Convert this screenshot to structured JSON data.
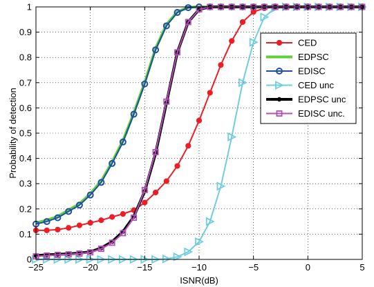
{
  "chart_data": {
    "type": "line",
    "xlabel": "ISNR(dB)",
    "ylabel": "Probability of detection",
    "xlim": [
      -25,
      5
    ],
    "ylim": [
      0,
      1
    ],
    "xticks": [
      -25,
      -20,
      -15,
      -10,
      -5,
      0,
      5
    ],
    "yticks": [
      0,
      0.1,
      0.2,
      0.3,
      0.4,
      0.5,
      0.6,
      0.7,
      0.8,
      0.9,
      1
    ],
    "xtick_labels": [
      "−25",
      "−20",
      "−15",
      "−10",
      "−5",
      "0",
      "5"
    ],
    "ytick_labels": [
      "0",
      "0.1",
      "0.2",
      "0.3",
      "0.4",
      "0.5",
      "0.6",
      "0.7",
      "0.8",
      "0.9",
      "1"
    ],
    "grid": true,
    "legend_position": "right",
    "x": [
      -25,
      -24,
      -23,
      -22,
      -21,
      -20,
      -19,
      -18,
      -17,
      -16,
      -15,
      -14,
      -13,
      -12,
      -11,
      -10,
      -9,
      -8,
      -7,
      -6,
      -5,
      -4,
      -3,
      -2,
      -1,
      0,
      1,
      2,
      3,
      4,
      5
    ],
    "series": [
      {
        "name": "CED",
        "color": "#ee1c25",
        "marker": "circle",
        "values": [
          0.115,
          0.115,
          0.118,
          0.125,
          0.135,
          0.145,
          0.155,
          0.168,
          0.18,
          0.195,
          0.225,
          0.265,
          0.31,
          0.37,
          0.45,
          0.55,
          0.66,
          0.77,
          0.865,
          0.94,
          0.98,
          0.995,
          1,
          1,
          1,
          1,
          1,
          1,
          1,
          1,
          1
        ]
      },
      {
        "name": "EDPSC",
        "color": "#5fcf3c",
        "marker": "none",
        "values": [
          0.145,
          0.155,
          0.17,
          0.195,
          0.22,
          0.26,
          0.31,
          0.385,
          0.47,
          0.58,
          0.7,
          0.835,
          0.93,
          0.98,
          0.998,
          1,
          1,
          1,
          1,
          1,
          1,
          1,
          1,
          1,
          1,
          1,
          1,
          1,
          1,
          1,
          1
        ]
      },
      {
        "name": "EDISC",
        "color": "#1f4fa3",
        "marker": "circle-open",
        "values": [
          0.14,
          0.15,
          0.165,
          0.19,
          0.215,
          0.255,
          0.305,
          0.38,
          0.465,
          0.575,
          0.695,
          0.83,
          0.925,
          0.978,
          0.997,
          1,
          1,
          1,
          1,
          1,
          1,
          1,
          1,
          1,
          1,
          1,
          1,
          1,
          1,
          1,
          1
        ]
      },
      {
        "name": "CED unc",
        "color": "#6fcde0",
        "marker": "triangle-right",
        "values": [
          0,
          0,
          0,
          0,
          0,
          0,
          0,
          0,
          0,
          0,
          0,
          0,
          0.002,
          0.01,
          0.03,
          0.07,
          0.15,
          0.29,
          0.485,
          0.7,
          0.86,
          0.96,
          0.995,
          1,
          1,
          1,
          1,
          1,
          1,
          1,
          1
        ]
      },
      {
        "name": "EDPSC unc",
        "color": "#000000",
        "marker": "dot",
        "values": [
          0.015,
          0.018,
          0.02,
          0.022,
          0.025,
          0.03,
          0.045,
          0.07,
          0.11,
          0.17,
          0.27,
          0.42,
          0.62,
          0.82,
          0.94,
          0.99,
          1,
          1,
          1,
          1,
          1,
          1,
          1,
          1,
          1,
          1,
          1,
          1,
          1,
          1,
          1
        ]
      },
      {
        "name": "EDISC unc.",
        "color": "#b34fb5",
        "marker": "square",
        "values": [
          0.012,
          0.015,
          0.018,
          0.02,
          0.023,
          0.028,
          0.042,
          0.066,
          0.104,
          0.165,
          0.275,
          0.425,
          0.625,
          0.82,
          0.94,
          0.99,
          1,
          1,
          1,
          1,
          1,
          1,
          1,
          1,
          1,
          1,
          1,
          1,
          1,
          1,
          1
        ]
      }
    ]
  }
}
